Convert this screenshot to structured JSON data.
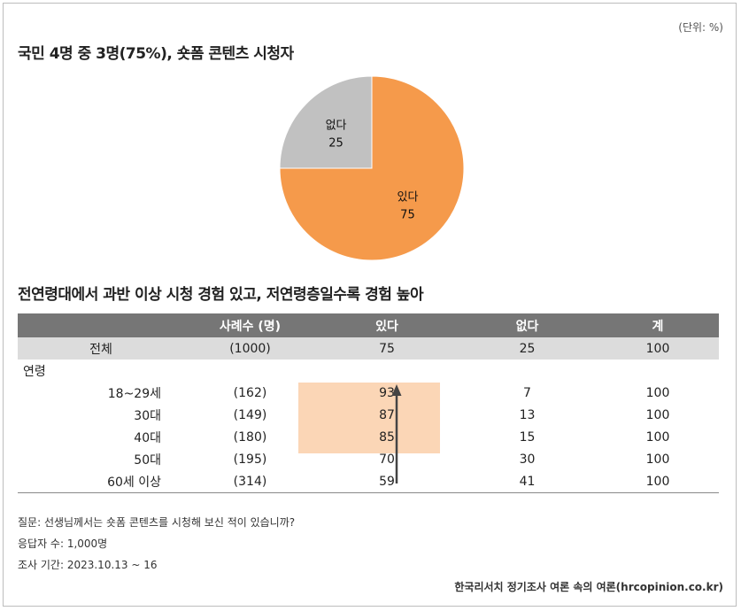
{
  "unit_label": "(단위: %)",
  "title1": "국민 4명 중 3명(75%), 숏폼 콘텐츠 시청자",
  "title2": "전연령대에서 과반 이상 시청 경험 있고, 저연령층일수록 경험 높아",
  "chart_data": [
    {
      "type": "pie",
      "slices": [
        {
          "label": "있다",
          "value": 75,
          "color": "#f59a4b"
        },
        {
          "label": "없다",
          "value": 25,
          "color": "#c1c1c1"
        }
      ]
    },
    {
      "type": "table",
      "columns": [
        "",
        "사례수 (명)",
        "있다",
        "없다",
        "계"
      ],
      "total": {
        "label": "전체",
        "n": "(1000)",
        "yes": "75",
        "no": "25",
        "sum": "100"
      },
      "group_label": "연령",
      "rows": [
        {
          "label": "18~29세",
          "n": "(162)",
          "yes": "93",
          "no": "7",
          "sum": "100"
        },
        {
          "label": "30대",
          "n": "(149)",
          "yes": "87",
          "no": "13",
          "sum": "100"
        },
        {
          "label": "40대",
          "n": "(180)",
          "yes": "85",
          "no": "15",
          "sum": "100"
        },
        {
          "label": "50대",
          "n": "(195)",
          "yes": "70",
          "no": "30",
          "sum": "100"
        },
        {
          "label": "60세 이상",
          "n": "(314)",
          "yes": "59",
          "no": "41",
          "sum": "100"
        }
      ],
      "highlight_color": "#fbd6b6"
    }
  ],
  "notes": {
    "question": "질문: 선생님께서는 숏폼 콘텐츠를 시청해 보신 적이 있습니까?",
    "respondents": "응답자 수: 1,000명",
    "period": "조사 기간: 2023.10.13 ~ 16"
  },
  "source": "한국리서치 정기조사 여론 속의 여론(hrcopinion.co.kr)"
}
